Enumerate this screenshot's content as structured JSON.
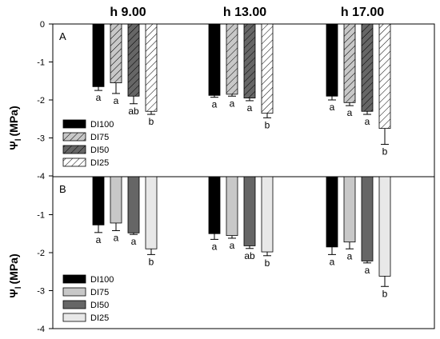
{
  "chart_data": {
    "type": "bar",
    "time_labels": [
      "h 9.00",
      "h 13.00",
      "h 17.00"
    ],
    "ylabel_main": "Ψ",
    "ylabel_sub": "l",
    "ylabel_unit": "(MPa)",
    "series_names": [
      "DI100",
      "DI75",
      "DI50",
      "DI25"
    ],
    "colors": {
      "DI100": "#000000",
      "DI75_A": "#ffffff",
      "DI75_B": "#c8c8c8",
      "DI50": "#666666",
      "DI25": "#ffffff",
      "DI25_B": "#e8e8e8"
    },
    "panels": [
      {
        "id": "A",
        "ylim": [
          -4,
          0
        ],
        "yticks": [
          "0",
          "-1",
          "-2",
          "-3",
          "-4"
        ],
        "hatched": true,
        "groups": [
          {
            "time": "h 9.00",
            "values": [
              -1.65,
              -1.55,
              -1.9,
              -2.3
            ],
            "errors": [
              0.1,
              0.28,
              0.2,
              0.08
            ],
            "letters": [
              "a",
              "a",
              "ab",
              "b"
            ]
          },
          {
            "time": "h 13.00",
            "values": [
              -1.88,
              -1.85,
              -1.95,
              -2.35
            ],
            "errors": [
              0.05,
              0.05,
              0.07,
              0.12
            ],
            "letters": [
              "a",
              "a",
              "a",
              "b"
            ]
          },
          {
            "time": "h 17.00",
            "values": [
              -1.9,
              -2.07,
              -2.3,
              -2.75
            ],
            "errors": [
              0.1,
              0.08,
              0.08,
              0.42
            ],
            "letters": [
              "a",
              "a",
              "a",
              "b"
            ]
          }
        ]
      },
      {
        "id": "B",
        "ylim": [
          -4,
          0
        ],
        "yticks": [
          "-1",
          "-2",
          "-3",
          "-4"
        ],
        "hatched": false,
        "groups": [
          {
            "time": "h 9.00",
            "values": [
              -1.27,
              -1.22,
              -1.48,
              -1.9
            ],
            "errors": [
              0.2,
              0.2,
              0.04,
              0.15
            ],
            "letters": [
              "a",
              "a",
              "a",
              "b"
            ]
          },
          {
            "time": "h 13.00",
            "values": [
              -1.5,
              -1.55,
              -1.82,
              -1.98
            ],
            "errors": [
              0.15,
              0.07,
              0.07,
              0.1
            ],
            "letters": [
              "a",
              "a",
              "ab",
              "b"
            ]
          },
          {
            "time": "h 17.00",
            "values": [
              -1.85,
              -1.72,
              -2.22,
              -2.62
            ],
            "errors": [
              0.2,
              0.18,
              0.05,
              0.27
            ],
            "letters": [
              "a",
              "a",
              "a",
              "b"
            ]
          }
        ]
      }
    ]
  }
}
